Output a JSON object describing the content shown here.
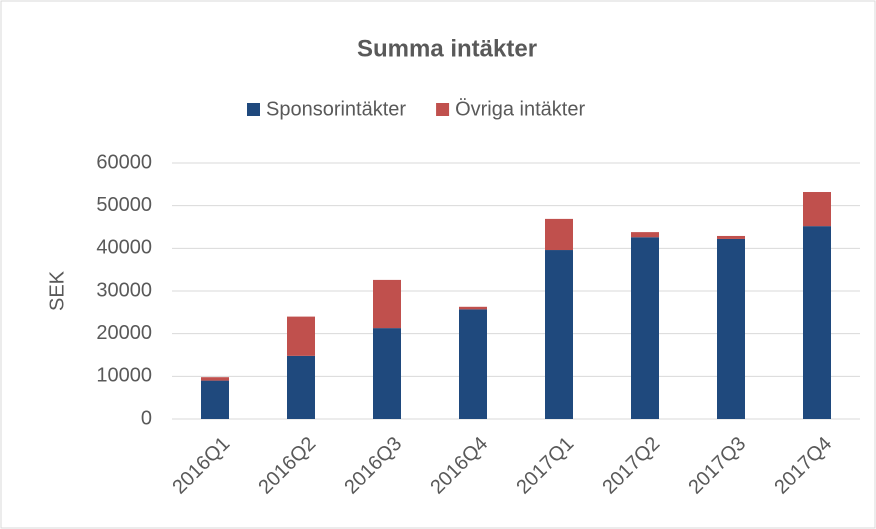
{
  "chart_data": {
    "type": "stacked_bar",
    "title": "Summa intäkter",
    "y_label": "SEK",
    "categories": [
      "2016Q1",
      "2016Q2",
      "2016Q3",
      "2016Q4",
      "2017Q1",
      "2017Q2",
      "2017Q3",
      "2017Q4"
    ],
    "series": [
      {
        "name": "Sponsorintäkter",
        "color": "#1f497d",
        "values": [
          9000,
          14800,
          21300,
          25700,
          39600,
          42600,
          42200,
          45200
        ]
      },
      {
        "name": "Övriga intäkter",
        "color": "#c0504d",
        "values": [
          800,
          9200,
          11300,
          600,
          7300,
          1200,
          700,
          8000
        ]
      }
    ],
    "ylim": [
      0,
      60000
    ],
    "yticks": [
      0,
      10000,
      20000,
      30000,
      40000,
      50000,
      60000
    ],
    "grid": true,
    "legend": "top"
  }
}
